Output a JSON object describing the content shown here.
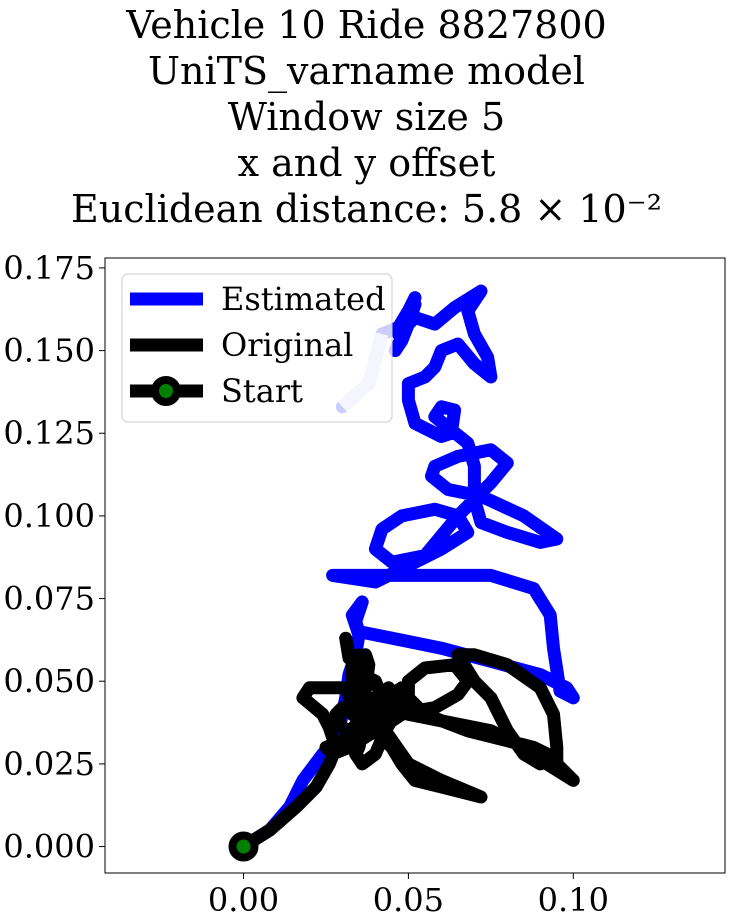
{
  "chart_data": {
    "type": "line",
    "title_lines": [
      "Vehicle 10 Ride 8827800",
      "UniTS_varname model",
      "Window size 5",
      "x and y offset",
      "Euclidean distance: 5.8 × 10⁻²"
    ],
    "xlabel": "",
    "ylabel": "",
    "xlim": [
      -0.042,
      0.146
    ],
    "ylim": [
      -0.008,
      0.178
    ],
    "xticks": [
      0.0,
      0.05,
      0.1
    ],
    "xtick_labels": [
      "0.00",
      "0.05",
      "0.10"
    ],
    "yticks": [
      0.0,
      0.025,
      0.05,
      0.075,
      0.1,
      0.125,
      0.15,
      0.175
    ],
    "ytick_labels": [
      "0.000",
      "0.025",
      "0.050",
      "0.075",
      "0.100",
      "0.125",
      "0.150",
      "0.175"
    ],
    "grid": false,
    "legend_position": "upper-left",
    "series": [
      {
        "name": "Estimated",
        "color": "#0000ff",
        "points": [
          [
            0,
            0
          ],
          [
            0.008,
            0.005
          ],
          [
            0.014,
            0.012
          ],
          [
            0.018,
            0.02
          ],
          [
            0.024,
            0.028
          ],
          [
            0.026,
            0.03
          ],
          [
            0.028,
            0.032
          ],
          [
            0.03,
            0.04
          ],
          [
            0.031,
            0.045
          ],
          [
            0.032,
            0.052
          ],
          [
            0.034,
            0.058
          ],
          [
            0.035,
            0.064
          ],
          [
            0.033,
            0.07
          ],
          [
            0.036,
            0.074
          ],
          [
            0.034,
            0.068
          ],
          [
            0.035,
            0.065
          ],
          [
            0.04,
            0.064
          ],
          [
            0.05,
            0.062
          ],
          [
            0.06,
            0.06
          ],
          [
            0.075,
            0.056
          ],
          [
            0.09,
            0.052
          ],
          [
            0.098,
            0.048
          ],
          [
            0.1,
            0.045
          ],
          [
            0.096,
            0.047
          ],
          [
            0.094,
            0.06
          ],
          [
            0.093,
            0.07
          ],
          [
            0.088,
            0.078
          ],
          [
            0.075,
            0.082
          ],
          [
            0.06,
            0.082
          ],
          [
            0.05,
            0.082
          ],
          [
            0.042,
            0.082
          ],
          [
            0.035,
            0.082
          ],
          [
            0.027,
            0.082
          ],
          [
            0.04,
            0.08
          ],
          [
            0.05,
            0.085
          ],
          [
            0.06,
            0.09
          ],
          [
            0.068,
            0.095
          ],
          [
            0.065,
            0.1
          ],
          [
            0.058,
            0.102
          ],
          [
            0.048,
            0.1
          ],
          [
            0.042,
            0.096
          ],
          [
            0.04,
            0.09
          ],
          [
            0.045,
            0.086
          ],
          [
            0.055,
            0.088
          ],
          [
            0.065,
            0.1
          ],
          [
            0.075,
            0.11
          ],
          [
            0.08,
            0.116
          ],
          [
            0.075,
            0.12
          ],
          [
            0.065,
            0.118
          ],
          [
            0.058,
            0.115
          ],
          [
            0.057,
            0.112
          ],
          [
            0.062,
            0.108
          ],
          [
            0.072,
            0.106
          ],
          [
            0.085,
            0.1
          ],
          [
            0.095,
            0.093
          ],
          [
            0.09,
            0.092
          ],
          [
            0.08,
            0.095
          ],
          [
            0.072,
            0.098
          ],
          [
            0.07,
            0.105
          ],
          [
            0.07,
            0.115
          ],
          [
            0.068,
            0.122
          ],
          [
            0.063,
            0.126
          ],
          [
            0.058,
            0.13
          ],
          [
            0.06,
            0.133
          ],
          [
            0.064,
            0.132
          ],
          [
            0.063,
            0.125
          ],
          [
            0.06,
            0.124
          ],
          [
            0.052,
            0.128
          ],
          [
            0.05,
            0.135
          ],
          [
            0.05,
            0.14
          ],
          [
            0.055,
            0.142
          ],
          [
            0.058,
            0.145
          ],
          [
            0.06,
            0.15
          ],
          [
            0.065,
            0.152
          ],
          [
            0.07,
            0.146
          ],
          [
            0.075,
            0.142
          ],
          [
            0.074,
            0.148
          ],
          [
            0.07,
            0.155
          ],
          [
            0.068,
            0.162
          ],
          [
            0.072,
            0.168
          ],
          [
            0.064,
            0.163
          ],
          [
            0.058,
            0.158
          ],
          [
            0.052,
            0.16
          ],
          [
            0.05,
            0.158
          ],
          [
            0.048,
            0.153
          ],
          [
            0.046,
            0.15
          ],
          [
            0.05,
            0.158
          ],
          [
            0.052,
            0.164
          ],
          [
            0.05,
            0.158
          ],
          [
            0.048,
            0.153
          ],
          [
            0.047,
            0.155
          ],
          [
            0.05,
            0.162
          ],
          [
            0.052,
            0.166
          ],
          [
            0.05,
            0.162
          ],
          [
            0.047,
            0.157
          ],
          [
            0.042,
            0.155
          ],
          [
            0.038,
            0.14
          ],
          [
            0.03,
            0.133
          ]
        ]
      },
      {
        "name": "Original",
        "color": "#000000",
        "points": [
          [
            0,
            0
          ],
          [
            0.008,
            0.005
          ],
          [
            0.016,
            0.012
          ],
          [
            0.022,
            0.018
          ],
          [
            0.026,
            0.025
          ],
          [
            0.028,
            0.03
          ],
          [
            0.026,
            0.036
          ],
          [
            0.024,
            0.04
          ],
          [
            0.018,
            0.045
          ],
          [
            0.02,
            0.048
          ],
          [
            0.03,
            0.048
          ],
          [
            0.034,
            0.045
          ],
          [
            0.035,
            0.038
          ],
          [
            0.03,
            0.032
          ],
          [
            0.025,
            0.03
          ],
          [
            0.027,
            0.028
          ],
          [
            0.032,
            0.03
          ],
          [
            0.04,
            0.035
          ],
          [
            0.045,
            0.03
          ],
          [
            0.048,
            0.025
          ],
          [
            0.052,
            0.02
          ],
          [
            0.06,
            0.018
          ],
          [
            0.072,
            0.015
          ],
          [
            0.06,
            0.02
          ],
          [
            0.05,
            0.025
          ],
          [
            0.043,
            0.035
          ],
          [
            0.046,
            0.04
          ],
          [
            0.058,
            0.042
          ],
          [
            0.065,
            0.046
          ],
          [
            0.068,
            0.05
          ],
          [
            0.064,
            0.055
          ],
          [
            0.055,
            0.054
          ],
          [
            0.05,
            0.05
          ],
          [
            0.05,
            0.045
          ],
          [
            0.055,
            0.04
          ],
          [
            0.068,
            0.035
          ],
          [
            0.08,
            0.032
          ],
          [
            0.088,
            0.03
          ],
          [
            0.092,
            0.028
          ],
          [
            0.09,
            0.025
          ],
          [
            0.085,
            0.028
          ],
          [
            0.08,
            0.035
          ],
          [
            0.075,
            0.045
          ],
          [
            0.07,
            0.05
          ],
          [
            0.065,
            0.058
          ],
          [
            0.07,
            0.058
          ],
          [
            0.08,
            0.055
          ],
          [
            0.09,
            0.048
          ],
          [
            0.094,
            0.04
          ],
          [
            0.095,
            0.03
          ],
          [
            0.095,
            0.025
          ],
          [
            0.1,
            0.02
          ],
          [
            0.092,
            0.025
          ],
          [
            0.085,
            0.03
          ],
          [
            0.075,
            0.035
          ],
          [
            0.06,
            0.038
          ],
          [
            0.05,
            0.04
          ],
          [
            0.045,
            0.042
          ],
          [
            0.044,
            0.04
          ],
          [
            0.042,
            0.038
          ],
          [
            0.038,
            0.036
          ],
          [
            0.035,
            0.04
          ],
          [
            0.032,
            0.045
          ],
          [
            0.034,
            0.05
          ],
          [
            0.036,
            0.052
          ],
          [
            0.04,
            0.05
          ],
          [
            0.042,
            0.045
          ],
          [
            0.04,
            0.04
          ],
          [
            0.038,
            0.038
          ],
          [
            0.035,
            0.042
          ],
          [
            0.033,
            0.048
          ],
          [
            0.033,
            0.055
          ],
          [
            0.035,
            0.058
          ],
          [
            0.037,
            0.055
          ],
          [
            0.036,
            0.05
          ],
          [
            0.034,
            0.055
          ],
          [
            0.032,
            0.058
          ],
          [
            0.031,
            0.063
          ],
          [
            0.032,
            0.057
          ],
          [
            0.035,
            0.056
          ],
          [
            0.037,
            0.058
          ],
          [
            0.038,
            0.055
          ],
          [
            0.036,
            0.04
          ],
          [
            0.04,
            0.037
          ],
          [
            0.045,
            0.038
          ],
          [
            0.048,
            0.04
          ],
          [
            0.05,
            0.045
          ],
          [
            0.048,
            0.048
          ],
          [
            0.045,
            0.046
          ],
          [
            0.042,
            0.04
          ],
          [
            0.038,
            0.036
          ],
          [
            0.034,
            0.034
          ],
          [
            0.03,
            0.036
          ],
          [
            0.028,
            0.04
          ],
          [
            0.03,
            0.042
          ],
          [
            0.033,
            0.04
          ],
          [
            0.036,
            0.038
          ],
          [
            0.04,
            0.04
          ],
          [
            0.044,
            0.042
          ],
          [
            0.046,
            0.045
          ],
          [
            0.044,
            0.048
          ],
          [
            0.04,
            0.045
          ],
          [
            0.038,
            0.04
          ],
          [
            0.036,
            0.035
          ],
          [
            0.035,
            0.03
          ],
          [
            0.034,
            0.028
          ],
          [
            0.036,
            0.025
          ],
          [
            0.04,
            0.028
          ],
          [
            0.043,
            0.035
          ],
          [
            0.045,
            0.04
          ]
        ]
      }
    ],
    "start": {
      "name": "Start",
      "x": 0.0,
      "y": 0.0,
      "edge_color": "#000000",
      "face_color": "#008000"
    }
  }
}
